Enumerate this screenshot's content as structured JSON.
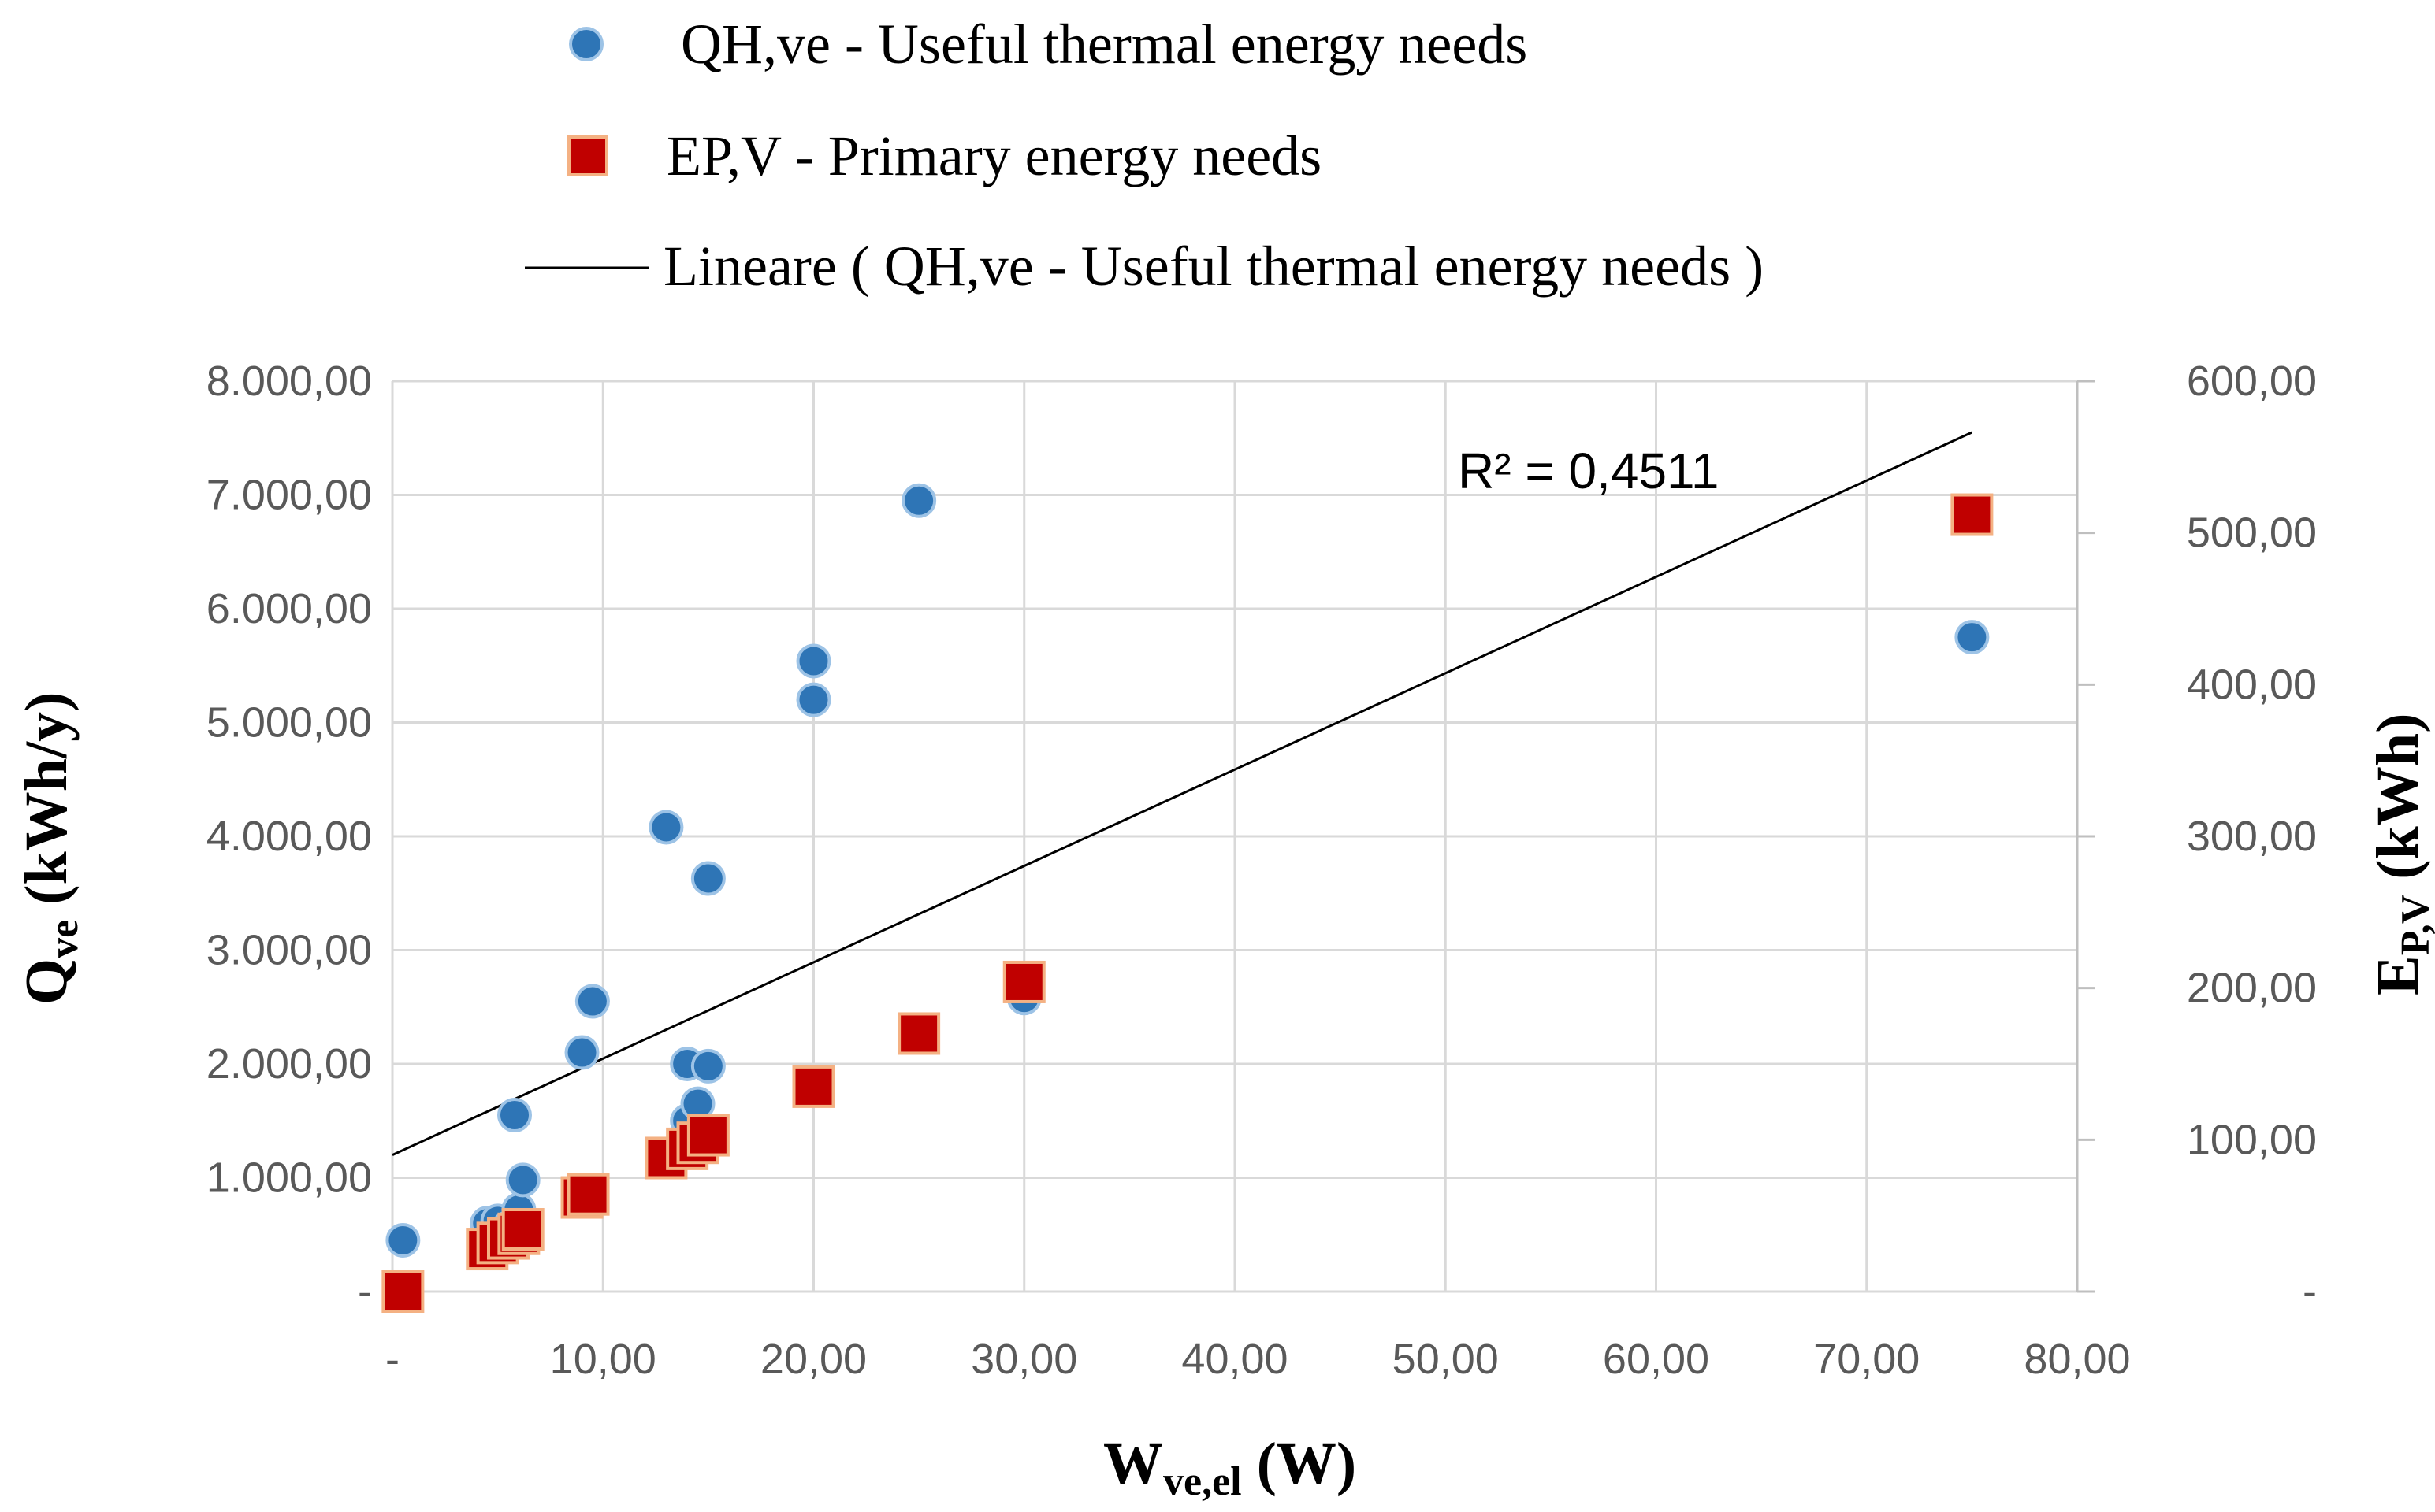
{
  "chart_data": {
    "type": "scatter",
    "legend": {
      "position": "top",
      "entries": [
        "QH,ve - Useful thermal energy needs",
        "EP,V - Primary energy needs",
        "Lineare ( QH,ve - Useful thermal energy needs )"
      ]
    },
    "x_axis": {
      "title_main": "W",
      "title_sub": "ve,el",
      "title_unit": " (W)",
      "range": [
        0,
        80
      ],
      "tick_values": [
        0,
        10,
        20,
        30,
        40,
        50,
        60,
        70,
        80
      ],
      "tick_labels": [
        "-",
        "10,00",
        "20,00",
        "30,00",
        "40,00",
        "50,00",
        "60,00",
        "70,00",
        "80,00"
      ]
    },
    "y_axis_left": {
      "title_main": "Q",
      "title_sub": "ve",
      "title_unit": " (kWh/y)",
      "range": [
        0,
        8000
      ],
      "tick_values": [
        0,
        1000,
        2000,
        3000,
        4000,
        5000,
        6000,
        7000,
        8000
      ],
      "tick_labels": [
        "-",
        "1.000,00",
        "2.000,00",
        "3.000,00",
        "4.000,00",
        "5.000,00",
        "6.000,00",
        "7.000,00",
        "8.000,00"
      ]
    },
    "y_axis_right": {
      "title_main": "E",
      "title_sub": "P,V",
      "title_unit": " (kWh)",
      "range": [
        0,
        600
      ],
      "tick_values": [
        0,
        100,
        200,
        300,
        400,
        500,
        600
      ],
      "tick_labels": [
        "-",
        "100,00",
        "200,00",
        "300,00",
        "400,00",
        "500,00",
        "600,00"
      ]
    },
    "grid": true,
    "series": [
      {
        "name": "QH,ve - Useful thermal energy needs",
        "axis": "left",
        "marker": "circle",
        "color": "#2E75B6",
        "points": [
          [
            0.5,
            450
          ],
          [
            4.5,
            600
          ],
          [
            5,
            620
          ],
          [
            5.5,
            560
          ],
          [
            5.8,
            1550
          ],
          [
            6,
            720
          ],
          [
            6.2,
            980
          ],
          [
            9,
            2100
          ],
          [
            9.5,
            2550
          ],
          [
            13,
            4080
          ],
          [
            14,
            2000
          ],
          [
            14,
            1500
          ],
          [
            14.5,
            1650
          ],
          [
            15,
            1980
          ],
          [
            15,
            3630
          ],
          [
            20,
            5540
          ],
          [
            20,
            5200
          ],
          [
            25,
            6950
          ],
          [
            30,
            2580
          ],
          [
            75,
            5750
          ]
        ]
      },
      {
        "name": "EP,V - Primary energy needs",
        "axis": "right",
        "marker": "square",
        "color": "#C00000",
        "points": [
          [
            0.5,
            0
          ],
          [
            4.5,
            28
          ],
          [
            5,
            32
          ],
          [
            5.5,
            35
          ],
          [
            6,
            38
          ],
          [
            6.2,
            41
          ],
          [
            9,
            62
          ],
          [
            9.3,
            64
          ],
          [
            13,
            88
          ],
          [
            14,
            94
          ],
          [
            14.5,
            98
          ],
          [
            15,
            103
          ],
          [
            20,
            135
          ],
          [
            25,
            170
          ],
          [
            30,
            204
          ],
          [
            75,
            512
          ]
        ]
      }
    ],
    "trendline": {
      "name": "Lineare ( QH,ve - Useful thermal energy needs )",
      "series": "QH,ve - Useful thermal energy needs",
      "type": "linear",
      "x_range": [
        0,
        75
      ],
      "y_start": 1200,
      "y_end": 7550,
      "r2_label": "R² = 0,4511"
    }
  }
}
